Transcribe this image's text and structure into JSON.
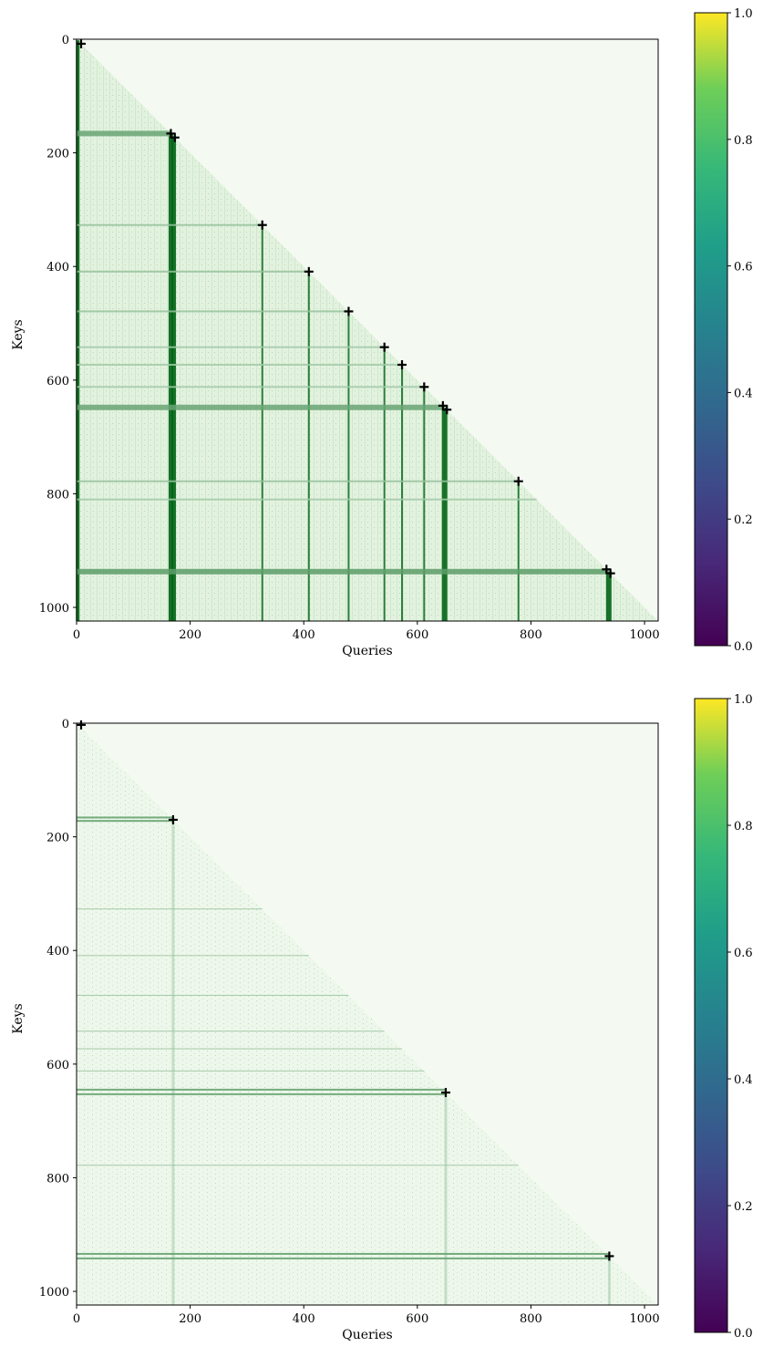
{
  "chart_data": [
    {
      "type": "heatmap",
      "title": "",
      "xlabel": "Queries",
      "ylabel": "Keys",
      "xlim": [
        0,
        1024
      ],
      "ylim": [
        1024,
        0
      ],
      "xticks": [
        0,
        200,
        400,
        600,
        800,
        1000
      ],
      "yticks": [
        0,
        200,
        400,
        600,
        800,
        1000
      ],
      "mask": "lower-triangular",
      "colorbar": {
        "min": 0.0,
        "max": 1.0,
        "ticks": [
          "0.0",
          "0.2",
          "0.4",
          "0.6",
          "0.8",
          "1.0"
        ],
        "colormap": "viridis"
      },
      "markers": [
        {
          "q": 8,
          "k": 8
        },
        {
          "q": 166,
          "k": 166
        },
        {
          "q": 173,
          "k": 173
        },
        {
          "q": 327,
          "k": 327
        },
        {
          "q": 409,
          "k": 409
        },
        {
          "q": 479,
          "k": 479
        },
        {
          "q": 542,
          "k": 542
        },
        {
          "q": 573,
          "k": 573
        },
        {
          "q": 612,
          "k": 612
        },
        {
          "q": 645,
          "k": 645
        },
        {
          "q": 652,
          "k": 652
        },
        {
          "q": 778,
          "k": 778
        },
        {
          "q": 933,
          "k": 933
        },
        {
          "q": 940,
          "k": 940
        }
      ],
      "columns": [
        {
          "q": 2,
          "strength": 1.0,
          "width": 4
        },
        {
          "q": 166,
          "strength": 1.0,
          "width": 5
        },
        {
          "q": 171,
          "strength": 1.0,
          "width": 5
        },
        {
          "q": 327,
          "strength": 0.9,
          "width": 2
        },
        {
          "q": 409,
          "strength": 0.9,
          "width": 2
        },
        {
          "q": 479,
          "strength": 0.9,
          "width": 2
        },
        {
          "q": 542,
          "strength": 0.9,
          "width": 2
        },
        {
          "q": 573,
          "strength": 0.9,
          "width": 2
        },
        {
          "q": 612,
          "strength": 0.9,
          "width": 2
        },
        {
          "q": 648,
          "strength": 1.0,
          "width": 6
        },
        {
          "q": 778,
          "strength": 0.9,
          "width": 2
        },
        {
          "q": 937,
          "strength": 1.0,
          "width": 6
        }
      ],
      "rows": [
        {
          "k": 166,
          "strength": 0.55,
          "width": 6
        },
        {
          "k": 327,
          "strength": 0.35,
          "width": 2
        },
        {
          "k": 409,
          "strength": 0.35,
          "width": 2
        },
        {
          "k": 479,
          "strength": 0.35,
          "width": 2
        },
        {
          "k": 542,
          "strength": 0.3,
          "width": 2
        },
        {
          "k": 573,
          "strength": 0.3,
          "width": 2
        },
        {
          "k": 612,
          "strength": 0.3,
          "width": 2
        },
        {
          "k": 648,
          "strength": 0.55,
          "width": 6
        },
        {
          "k": 778,
          "strength": 0.35,
          "width": 2
        },
        {
          "k": 810,
          "strength": 0.3,
          "width": 2
        },
        {
          "k": 937,
          "strength": 0.6,
          "width": 6
        }
      ]
    },
    {
      "type": "heatmap",
      "title": "",
      "xlabel": "Queries",
      "ylabel": "Keys",
      "xlim": [
        0,
        1024
      ],
      "ylim": [
        1024,
        0
      ],
      "xticks": [
        0,
        200,
        400,
        600,
        800,
        1000
      ],
      "yticks": [
        0,
        200,
        400,
        600,
        800,
        1000
      ],
      "mask": "lower-triangular",
      "colorbar": {
        "min": 0.0,
        "max": 1.0,
        "ticks": [
          "0.0",
          "0.2",
          "0.4",
          "0.6",
          "0.8",
          "1.0"
        ],
        "colormap": "viridis"
      },
      "markers": [
        {
          "q": 8,
          "k": 3
        },
        {
          "q": 170,
          "k": 170
        },
        {
          "q": 650,
          "k": 650
        },
        {
          "q": 938,
          "k": 938
        }
      ],
      "rows": [
        {
          "k": 166,
          "end": 170,
          "strength": 0.6,
          "width": 2
        },
        {
          "k": 172,
          "end": 170,
          "strength": 0.6,
          "width": 2
        },
        {
          "k": 327,
          "end": 327,
          "strength": 0.35,
          "width": 1
        },
        {
          "k": 409,
          "end": 409,
          "strength": 0.35,
          "width": 1
        },
        {
          "k": 479,
          "end": 479,
          "strength": 0.35,
          "width": 1
        },
        {
          "k": 542,
          "end": 542,
          "strength": 0.35,
          "width": 1
        },
        {
          "k": 573,
          "end": 573,
          "strength": 0.35,
          "width": 1
        },
        {
          "k": 612,
          "end": 612,
          "strength": 0.35,
          "width": 1
        },
        {
          "k": 645,
          "end": 650,
          "strength": 0.6,
          "width": 2
        },
        {
          "k": 653,
          "end": 650,
          "strength": 0.6,
          "width": 2
        },
        {
          "k": 778,
          "end": 778,
          "strength": 0.35,
          "width": 1
        },
        {
          "k": 934,
          "end": 938,
          "strength": 0.6,
          "width": 2
        },
        {
          "k": 942,
          "end": 938,
          "strength": 0.6,
          "width": 2
        }
      ],
      "columns": [
        {
          "q": 170,
          "strength": 0.3,
          "width": 3
        },
        {
          "q": 650,
          "strength": 0.3,
          "width": 3
        },
        {
          "q": 938,
          "strength": 0.3,
          "width": 3
        }
      ]
    }
  ]
}
